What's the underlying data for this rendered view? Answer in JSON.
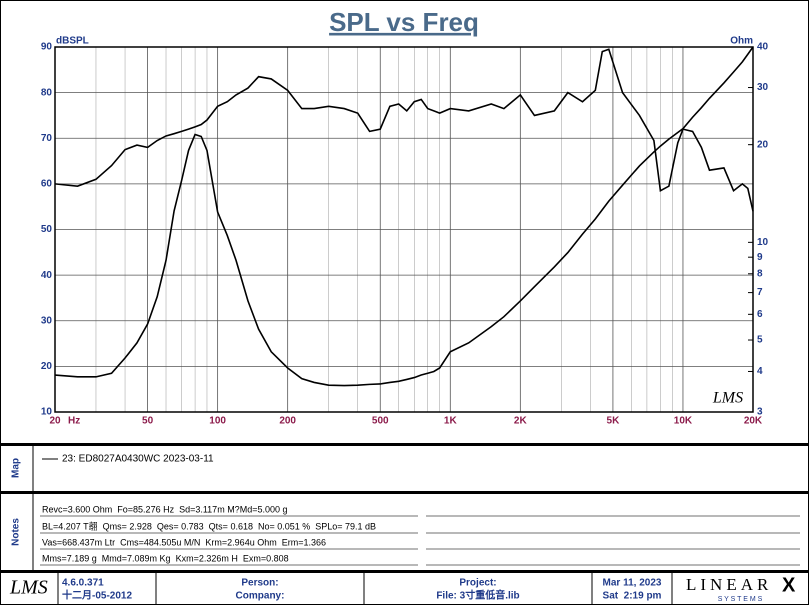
{
  "chart_data": {
    "type": "line",
    "title": "SPL vs Freq",
    "y_label": "dBSPL",
    "y2_label": "Ohm",
    "x_label": "Hz",
    "watermark": "LMS",
    "x": [
      20,
      25,
      30,
      35,
      40,
      45,
      50,
      55,
      60,
      65,
      70,
      75,
      80,
      85,
      90,
      100,
      110,
      120,
      135,
      150,
      170,
      200,
      230,
      260,
      300,
      350,
      400,
      450,
      500,
      550,
      600,
      650,
      700,
      750,
      800,
      850,
      900,
      1000,
      1200,
      1500,
      1700,
      2000,
      2300,
      2800,
      3200,
      3700,
      4200,
      4500,
      4800,
      5500,
      6500,
      7500,
      8000,
      8700,
      9500,
      10000,
      11000,
      12000,
      13000,
      15000,
      16500,
      18000,
      19000,
      20000
    ],
    "xlim": [
      20,
      20000
    ],
    "xscale": "log",
    "xticks": [
      20,
      50,
      100,
      200,
      500,
      {
        "value": 1000,
        "label": "1K"
      },
      {
        "value": 2000,
        "label": "2K"
      },
      {
        "value": 5000,
        "label": "5K"
      },
      {
        "value": 10000,
        "label": "10K"
      },
      {
        "value": 20000,
        "label": "20K"
      }
    ],
    "ylim": [
      10,
      90
    ],
    "yticks": [
      10,
      20,
      30,
      40,
      50,
      60,
      70,
      80,
      90
    ],
    "y2lim": [
      3,
      40
    ],
    "y2scale": "log",
    "y2ticks": [
      3,
      4,
      5,
      6,
      7,
      8,
      9,
      10,
      20,
      30,
      40
    ],
    "grid": true,
    "minor_grid": true,
    "series": [
      {
        "color": "#000000",
        "values": [
          60,
          59.5,
          61,
          64,
          67.5,
          68.5,
          68,
          69.5,
          70.5,
          71,
          71.5,
          72,
          72.5,
          73,
          74,
          77,
          78,
          79.5,
          81,
          83.5,
          83,
          80.5,
          76.5,
          76.5,
          77,
          76.5,
          75.5,
          71.5,
          72,
          77,
          77.5,
          76,
          78,
          78.5,
          76.5,
          76,
          75.5,
          76.5,
          76,
          77.5,
          76.5,
          79.5,
          75,
          76,
          80,
          78,
          80.5,
          89,
          89.5,
          80,
          75,
          69.5,
          58.5,
          59.5,
          69,
          72,
          71.5,
          68,
          63,
          63.5,
          58.5,
          60,
          59,
          54
        ]
      },
      {
        "color": "#000000",
        "axis": "y2",
        "values": [
          3.9,
          3.85,
          3.85,
          3.95,
          4.4,
          4.9,
          5.6,
          6.8,
          8.8,
          12.5,
          15.5,
          19.2,
          21.5,
          21.2,
          19.2,
          12.4,
          10.5,
          8.8,
          6.6,
          5.4,
          4.6,
          4.1,
          3.8,
          3.7,
          3.63,
          3.62,
          3.63,
          3.65,
          3.66,
          3.7,
          3.73,
          3.78,
          3.83,
          3.9,
          3.95,
          4.0,
          4.1,
          4.6,
          4.9,
          5.5,
          5.9,
          6.6,
          7.3,
          8.4,
          9.3,
          10.6,
          11.8,
          12.6,
          13.4,
          15,
          17.2,
          19,
          19.8,
          20.8,
          21.8,
          22.4,
          24.3,
          26,
          27.8,
          31,
          33.5,
          36,
          38,
          40
        ]
      }
    ]
  },
  "map": {
    "label": "Map",
    "entries": [
      "23: ED8027A0430WC 2023-03-11"
    ]
  },
  "notes": {
    "label": "Notes",
    "lines": [
      "Revc=3.600 Ohm  Fo=85.276 Hz  Sd=3.117m M?Md=5.000 g",
      "BL=4.207 T翿  Qms= 2.928  Qes= 0.783  Qts= 0.618  No= 0.051 %  SPLo= 79.1 dB",
      "Vas=668.437m Ltr  Cms=484.505u M/N  Krm=2.964u Ohm  Erm=1.366",
      "Mms=7.189 g  Mmd=7.089m Kg  Kxm=2.326m H  Exm=0.808"
    ]
  },
  "footer": {
    "logo": "LMS",
    "version": "4.6.0.371",
    "build_date": "十二月-05-2012",
    "person": "Person:",
    "company": "Company:",
    "project": "Project:",
    "file": "File: 3寸重低音.lib",
    "date": "Mar 11, 2023",
    "time": "Sat  2:19 pm",
    "brand": "LINEAR",
    "brand_x": "X",
    "brand_sub": "S Y S T E M S"
  }
}
